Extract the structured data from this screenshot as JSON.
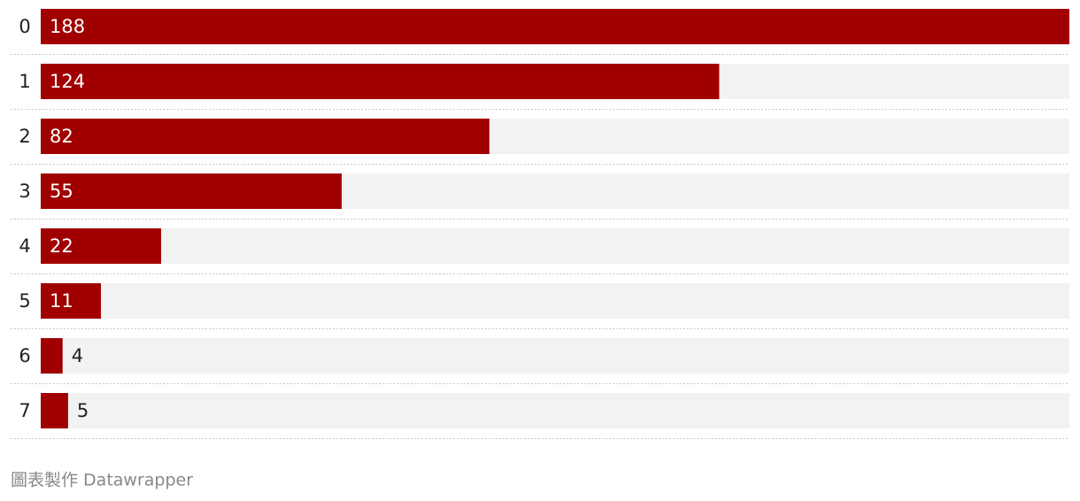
{
  "chart_data": {
    "type": "bar",
    "orientation": "horizontal",
    "categories": [
      "0",
      "1",
      "2",
      "3",
      "4",
      "5",
      "6",
      "7"
    ],
    "values": [
      188,
      124,
      82,
      55,
      22,
      11,
      4,
      5
    ],
    "color": "#a00000",
    "track_color": "#f2f2f2"
  },
  "credit": "圖表製作 Datawrapper"
}
